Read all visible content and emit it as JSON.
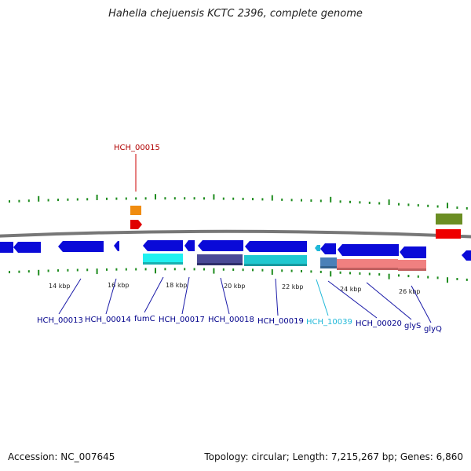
{
  "title": "Hahella chejuensis KCTC 2396, complete genome",
  "footer": {
    "accession": "Accession: NC_007645",
    "summary": "Topology: circular; Length: 7,215,267 bp; Genes: 6,860"
  },
  "colors": {
    "backbone": "#888888",
    "tick": "#1e8c1e",
    "forward_gene": "#0a0ad8",
    "label_gene": "#00008b",
    "label_rna": "#b00000",
    "label_highlight": "#20b8d8"
  },
  "ruler": [
    {
      "label": "14 kbp"
    },
    {
      "label": "16 kbp"
    },
    {
      "label": "18 kbp"
    },
    {
      "label": "20 kbp"
    },
    {
      "label": "22 kbp"
    },
    {
      "label": "24 kbp"
    },
    {
      "label": "26 kbp"
    }
  ],
  "gene_labels": [
    {
      "text": "HCH_00015",
      "color": "#b00000"
    },
    {
      "text": "HCH_00013",
      "color": "#00008b"
    },
    {
      "text": "HCH_00014",
      "color": "#00008b"
    },
    {
      "text": "fumC",
      "color": "#00008b"
    },
    {
      "text": "HCH_00017",
      "color": "#00008b"
    },
    {
      "text": "HCH_00018",
      "color": "#00008b"
    },
    {
      "text": "HCH_00019",
      "color": "#00008b"
    },
    {
      "text": "HCH_10039",
      "color": "#20b8d8"
    },
    {
      "text": "HCH_00020",
      "color": "#00008b"
    },
    {
      "text": "glyS",
      "color": "#00008b"
    },
    {
      "text": "glyQ",
      "color": "#00008b"
    }
  ]
}
